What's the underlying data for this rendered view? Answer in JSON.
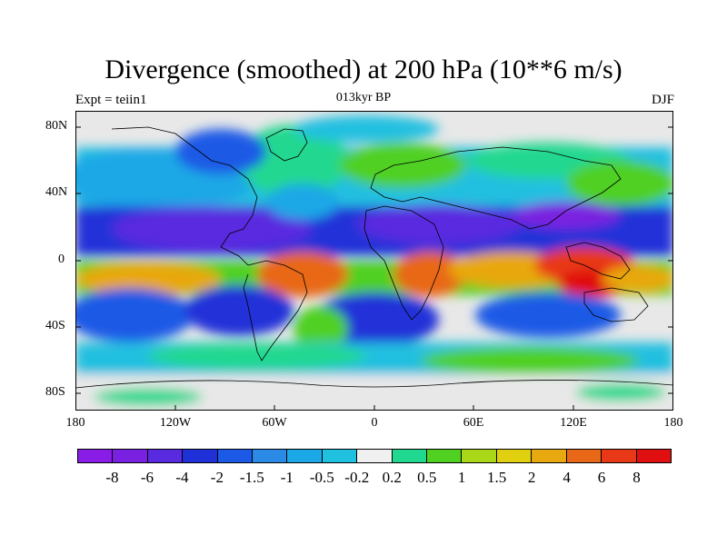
{
  "title": "Divergence (smoothed) at 200 hPa (10**6 m/s)",
  "left_label": "Expt = teiin1",
  "center_label": "013kyr BP",
  "right_label": "DJF",
  "map": {
    "lat_ticks": [
      "80N",
      "40N",
      "0",
      "40S",
      "80S"
    ],
    "lon_ticks": [
      "180",
      "120W",
      "60W",
      "0",
      "60E",
      "120E",
      "180"
    ]
  },
  "colorbar": {
    "colors": [
      "#8a1ce8",
      "#7a20e0",
      "#5a2ae0",
      "#2030d8",
      "#1a5ae6",
      "#2a8ae6",
      "#1aa8e6",
      "#20c0e0",
      "#f0f0f0",
      "#20d890",
      "#50d020",
      "#a8d818",
      "#e0d010",
      "#e8a810",
      "#e86818",
      "#e83818",
      "#e01010"
    ],
    "labels": [
      "-8",
      "-6",
      "-4",
      "-2",
      "-1.5",
      "-1",
      "-0.5",
      "-0.2",
      "0.2",
      "0.5",
      "1",
      "1.5",
      "2",
      "4",
      "6",
      "8"
    ]
  }
}
